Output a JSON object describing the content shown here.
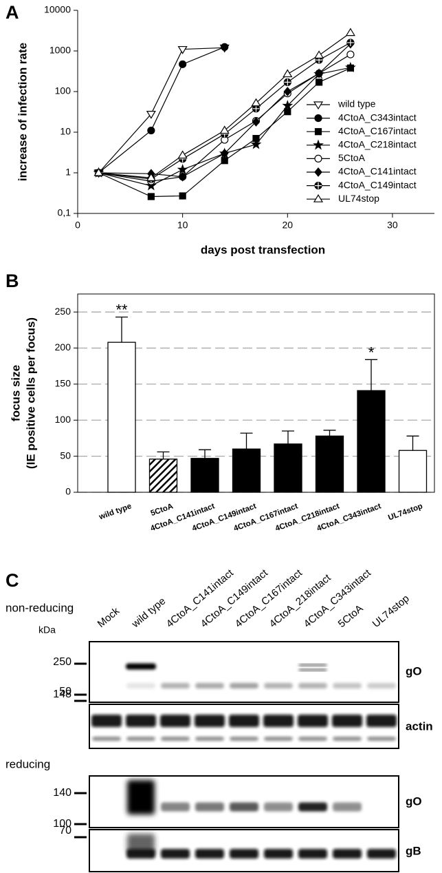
{
  "chart_data": [
    {
      "type": "line",
      "panel_label": "A",
      "y_label": "increase of infection rate",
      "x_label": "days post transfection",
      "x": [
        2,
        7,
        10,
        14,
        17,
        20,
        23,
        26
      ],
      "xlim": [
        0,
        34
      ],
      "xticks": [
        0,
        10,
        20,
        30
      ],
      "ylim": [
        0.1,
        10000
      ],
      "yticks": [
        {
          "value": 0.1,
          "label": "0,1"
        },
        1,
        10,
        100,
        1000,
        10000
      ],
      "log_y": true,
      "legend": "right",
      "series": [
        {
          "name": "wild type",
          "color": "#000000",
          "marker": "triangle-down",
          "marker_fill": "#ffffff",
          "values": [
            1,
            28,
            1100,
            1200,
            null,
            null,
            null,
            null
          ]
        },
        {
          "name": "4CtoA_C343intact",
          "color": "#000000",
          "marker": "circle",
          "marker_fill": "#000000",
          "values": [
            1,
            11,
            470,
            1250,
            null,
            null,
            null,
            null
          ]
        },
        {
          "name": "4CtoA_C167intact",
          "color": "#000000",
          "marker": "square",
          "marker_fill": "#000000",
          "values": [
            1,
            0.26,
            0.27,
            2,
            7,
            32,
            170,
            380
          ]
        },
        {
          "name": "4CtoA_C218intact",
          "color": "#000000",
          "marker": "star",
          "marker_fill": "#000000",
          "values": [
            1,
            0.48,
            1.2,
            3,
            5,
            45,
            270,
            390
          ]
        },
        {
          "name": "5CtoA",
          "color": "#000000",
          "marker": "circle",
          "marker_fill": "#ffffff",
          "values": [
            1,
            0.62,
            0.8,
            6.5,
            19,
            90,
            280,
            820
          ]
        },
        {
          "name": "4CtoA_C141intact",
          "color": "#000000",
          "marker": "diamond",
          "marker_fill": "#000000",
          "values": [
            1,
            0.95,
            0.8,
            3,
            18,
            100,
            280,
            1500
          ]
        },
        {
          "name": "4CtoA_C149intact",
          "color": "#000000",
          "marker": "crossed-circle",
          "marker_fill": "#000000",
          "values": [
            1,
            0.7,
            2.2,
            9,
            38,
            170,
            600,
            1600
          ]
        },
        {
          "name": "UL74stop",
          "color": "#000000",
          "marker": "triangle-up",
          "marker_fill": "#ffffff",
          "values": [
            1,
            0.75,
            2.7,
            11,
            52,
            270,
            780,
            2800
          ]
        }
      ]
    },
    {
      "type": "bar",
      "panel_label": "B",
      "y_label": [
        "focus size",
        "(IE positive cells per focus)"
      ],
      "categories": [
        "wild type",
        "5CtoA",
        "4CtoA_C141intact",
        "4CtoA_C149intact",
        "4CtoA_C167intact",
        "4CtoA_C218intact",
        "4CtoA_C343intact",
        "UL74stop"
      ],
      "values": [
        208,
        46,
        47,
        60,
        67,
        78,
        141,
        58
      ],
      "errors": [
        35,
        10,
        12,
        22,
        18,
        8,
        43,
        20
      ],
      "significance": [
        "**",
        null,
        null,
        null,
        null,
        null,
        "*",
        null
      ],
      "colors": [
        "#ffffff",
        "#000000",
        "#000000",
        "#000000",
        "#000000",
        "#000000",
        "#000000",
        "#ffffff"
      ],
      "hatched": [
        false,
        true,
        false,
        false,
        false,
        false,
        false,
        false
      ],
      "ylim": [
        0,
        275
      ],
      "yticks": [
        0,
        50,
        100,
        150,
        200,
        250
      ],
      "grid": true
    }
  ],
  "blot": {
    "panel_label": "C",
    "unit": "kDa",
    "lanes": [
      "Mock",
      "wild type",
      "4CtoA_C141intact",
      "4CtoA_C149intact",
      "4CtoA_C167intact",
      "4CtoA_218intact",
      "4CtoA_C343intact",
      "5CtoA",
      "UL74stop"
    ],
    "conditions": [
      {
        "title": "non-reducing",
        "panels": [
          {
            "protein": "gO",
            "markers": [
              250,
              148
            ]
          },
          {
            "protein": "actin",
            "markers": [
              50
            ]
          }
        ]
      },
      {
        "title": "reducing",
        "panels": [
          {
            "protein": "gO",
            "markers": [
              140,
              100
            ]
          },
          {
            "protein": "gB",
            "markers": [
              70
            ]
          }
        ]
      }
    ]
  }
}
